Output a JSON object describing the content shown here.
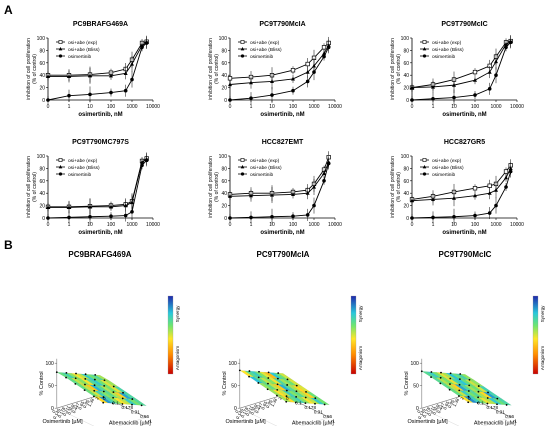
{
  "panel_a_label": "A",
  "panel_b_label": "B",
  "chart_data": [
    {
      "type": "line",
      "title": "PC9BRAFG469A",
      "xlabel": "osimertinib, nM",
      "ylabel": "inhibition of cell proliferation (% of control)",
      "x_ticks": [
        "0",
        "1",
        "10",
        "100",
        "1000",
        "10000"
      ],
      "y_ticks": [
        "0",
        "20",
        "40",
        "60",
        "80",
        "100"
      ],
      "x_scale": "log (with 0 at left)",
      "ylim": [
        0,
        100
      ],
      "legend": "top-left",
      "series": [
        {
          "name": "osi+abe (exp)",
          "x": [
            0,
            1,
            10,
            100,
            500,
            1000,
            3000,
            5000
          ],
          "y": [
            40,
            40,
            41,
            44,
            50,
            65,
            92,
            94
          ]
        },
        {
          "name": "osi+abe (Bliss)",
          "x": [
            0,
            1,
            10,
            100,
            500,
            1000,
            3000,
            5000
          ],
          "y": [
            38,
            38,
            39,
            39,
            43,
            58,
            88,
            93
          ]
        },
        {
          "name": "osimertinib",
          "x": [
            0,
            1,
            10,
            100,
            500,
            1000,
            3000,
            5000
          ],
          "y": [
            0,
            7,
            9,
            12,
            15,
            33,
            85,
            92
          ]
        }
      ]
    },
    {
      "type": "line",
      "title": "PC9T790McIA",
      "xlabel": "osimertinib, nM",
      "ylabel": "inhibition of cell proliferation (% of control)",
      "x_ticks": [
        "0",
        "1",
        "10",
        "100",
        "1000",
        "10000"
      ],
      "y_ticks": [
        "0",
        "20",
        "40",
        "60",
        "80",
        "100"
      ],
      "x_scale": "log (with 0 at left)",
      "ylim": [
        0,
        100
      ],
      "legend": "top-left",
      "series": [
        {
          "name": "osi+abe (exp)",
          "x": [
            0,
            1,
            10,
            100,
            500,
            1000,
            3000,
            5000
          ],
          "y": [
            35,
            37,
            40,
            48,
            58,
            68,
            85,
            92
          ]
        },
        {
          "name": "osi+abe (Bliss)",
          "x": [
            0,
            1,
            10,
            100,
            500,
            1000,
            3000,
            5000
          ],
          "y": [
            25,
            28,
            30,
            34,
            45,
            55,
            75,
            88
          ]
        },
        {
          "name": "osimertinib",
          "x": [
            0,
            1,
            10,
            100,
            500,
            1000,
            3000,
            5000
          ],
          "y": [
            0,
            3,
            8,
            15,
            30,
            45,
            70,
            85
          ]
        }
      ]
    },
    {
      "type": "line",
      "title": "PC9T790McIC",
      "xlabel": "osimertinib, nM",
      "ylabel": "inhibition of cell proliferation (% of control)",
      "x_ticks": [
        "0",
        "1",
        "10",
        "100",
        "1000",
        "10000"
      ],
      "y_ticks": [
        "0",
        "20",
        "40",
        "60",
        "80",
        "100"
      ],
      "x_scale": "log (with 0 at left)",
      "ylim": [
        0,
        100
      ],
      "legend": "top-left",
      "series": [
        {
          "name": "osi+abe (exp)",
          "x": [
            0,
            1,
            10,
            100,
            500,
            1000,
            3000,
            5000
          ],
          "y": [
            20,
            25,
            33,
            45,
            55,
            70,
            93,
            95
          ]
        },
        {
          "name": "osi+abe (Bliss)",
          "x": [
            0,
            1,
            10,
            100,
            500,
            1000,
            3000,
            5000
          ],
          "y": [
            20,
            21,
            24,
            32,
            45,
            62,
            90,
            94
          ]
        },
        {
          "name": "osimertinib",
          "x": [
            0,
            1,
            10,
            100,
            500,
            1000,
            3000,
            5000
          ],
          "y": [
            0,
            2,
            4,
            8,
            18,
            40,
            85,
            93
          ]
        }
      ]
    },
    {
      "type": "line",
      "title": "PC9T790MC797S",
      "xlabel": "osimertinib, nM",
      "ylabel": "inhibition of cell proliferation (% of control)",
      "x_ticks": [
        "0",
        "1",
        "10",
        "100",
        "1000",
        "10000"
      ],
      "y_ticks": [
        "0",
        "20",
        "40",
        "60",
        "80",
        "100"
      ],
      "x_scale": "log (with 0 at left)",
      "ylim": [
        0,
        100
      ],
      "legend": "top-left",
      "series": [
        {
          "name": "osi+abe (exp)",
          "x": [
            0,
            1,
            10,
            100,
            500,
            1000,
            3000,
            5000
          ],
          "y": [
            18,
            18,
            19,
            20,
            22,
            27,
            92,
            96
          ]
        },
        {
          "name": "osi+abe (Bliss)",
          "x": [
            0,
            1,
            10,
            100,
            500,
            1000,
            3000,
            5000
          ],
          "y": [
            17,
            17,
            18,
            18,
            20,
            25,
            90,
            95
          ]
        },
        {
          "name": "osimertinib",
          "x": [
            0,
            1,
            10,
            100,
            500,
            1000,
            3000,
            5000
          ],
          "y": [
            0,
            1,
            2,
            3,
            4,
            10,
            85,
            93
          ]
        }
      ]
    },
    {
      "type": "line",
      "title": "HCC827EMT",
      "xlabel": "osimertinib, nM",
      "ylabel": "inhibition of cell proliferation (% of control)",
      "x_ticks": [
        "0",
        "1",
        "10",
        "100",
        "1000",
        "10000"
      ],
      "y_ticks": [
        "0",
        "20",
        "40",
        "60",
        "80",
        "100"
      ],
      "x_scale": "log (with 0 at left)",
      "ylim": [
        0,
        100
      ],
      "legend": "top-left",
      "series": [
        {
          "name": "osi+abe (exp)",
          "x": [
            0,
            1,
            10,
            100,
            500,
            1000,
            3000,
            5000
          ],
          "y": [
            38,
            40,
            40,
            42,
            45,
            55,
            78,
            98
          ]
        },
        {
          "name": "osi+abe (Bliss)",
          "x": [
            0,
            1,
            10,
            100,
            500,
            1000,
            3000,
            5000
          ],
          "y": [
            35,
            36,
            37,
            38,
            40,
            50,
            72,
            90
          ]
        },
        {
          "name": "osimertinib",
          "x": [
            0,
            1,
            10,
            100,
            500,
            1000,
            3000,
            5000
          ],
          "y": [
            0,
            1,
            2,
            3,
            5,
            20,
            60,
            88
          ]
        }
      ]
    },
    {
      "type": "line",
      "title": "HCC827GR5",
      "xlabel": "osimertinib, nM",
      "ylabel": "inhibition of cell proliferation (% of control)",
      "x_ticks": [
        "0",
        "1",
        "10",
        "100",
        "1000",
        "10000"
      ],
      "y_ticks": [
        "0",
        "20",
        "40",
        "60",
        "80",
        "100"
      ],
      "x_scale": "log (with 0 at left)",
      "ylim": [
        0,
        100
      ],
      "legend": "top-left",
      "series": [
        {
          "name": "osi+abe (exp)",
          "x": [
            0,
            1,
            10,
            100,
            500,
            1000,
            3000,
            5000
          ],
          "y": [
            30,
            35,
            42,
            48,
            52,
            55,
            75,
            85
          ]
        },
        {
          "name": "osi+abe (Bliss)",
          "x": [
            0,
            1,
            10,
            100,
            500,
            1000,
            3000,
            5000
          ],
          "y": [
            28,
            30,
            32,
            36,
            40,
            45,
            65,
            80
          ]
        },
        {
          "name": "osimertinib",
          "x": [
            0,
            1,
            10,
            100,
            500,
            1000,
            3000,
            5000
          ],
          "y": [
            0,
            1,
            2,
            4,
            8,
            20,
            50,
            75
          ]
        }
      ]
    },
    {
      "type": "heatmap",
      "title": "PC9BRAFG469A",
      "xlabel": "Abemaciclib [µM]",
      "ylabel": "Osimertinib [µM]",
      "zlabel": "% Control",
      "x_ticks": [
        "0",
        "0.1",
        "0.178",
        "0.31",
        "0.56",
        "1"
      ],
      "y_ticks": [
        "0",
        "0.145",
        "0.178",
        "0.211",
        "0.308",
        "0.447",
        "0.65",
        "0.95",
        "1.38",
        "2"
      ],
      "z_ticks": [
        "0",
        "50",
        "100"
      ],
      "colorbar_labels": [
        "Synergy",
        "Antagonism"
      ],
      "surface": [
        [
          80,
          78,
          74,
          70,
          66,
          62
        ],
        [
          76,
          74,
          70,
          66,
          62,
          58
        ],
        [
          72,
          70,
          66,
          62,
          58,
          54
        ],
        [
          68,
          66,
          62,
          58,
          54,
          50
        ],
        [
          64,
          62,
          58,
          54,
          50,
          46
        ],
        [
          60,
          58,
          54,
          50,
          46,
          42
        ],
        [
          56,
          54,
          50,
          46,
          42,
          38
        ],
        [
          52,
          50,
          46,
          42,
          38,
          34
        ],
        [
          48,
          46,
          42,
          38,
          34,
          30
        ],
        [
          44,
          42,
          38,
          34,
          30,
          26
        ]
      ]
    },
    {
      "type": "heatmap",
      "title": "PC9T790McIA",
      "xlabel": "Abemaciclib [µM]",
      "ylabel": "Osimertinib [µM]",
      "zlabel": "% Control",
      "x_ticks": [
        "0",
        "0.1",
        "0.178",
        "0.31",
        "0.56",
        "1"
      ],
      "y_ticks": [
        "0",
        "0.145",
        "0.178",
        "0.211",
        "0.308",
        "0.447",
        "0.65",
        "0.95",
        "1.38",
        "2"
      ],
      "z_ticks": [
        "0",
        "50",
        "100"
      ],
      "colorbar_labels": [
        "Synergy",
        "Antagonism"
      ],
      "surface": [
        [
          84,
          80,
          76,
          72,
          68,
          64
        ],
        [
          80,
          76,
          72,
          68,
          64,
          60
        ],
        [
          76,
          72,
          68,
          64,
          60,
          56
        ],
        [
          72,
          68,
          64,
          60,
          56,
          52
        ],
        [
          68,
          64,
          60,
          56,
          52,
          48
        ],
        [
          64,
          60,
          56,
          52,
          48,
          44
        ],
        [
          60,
          56,
          52,
          48,
          44,
          40
        ],
        [
          56,
          52,
          48,
          44,
          40,
          36
        ],
        [
          52,
          48,
          44,
          40,
          36,
          32
        ],
        [
          48,
          44,
          40,
          36,
          32,
          28
        ]
      ]
    },
    {
      "type": "heatmap",
      "title": "PC9T790McIC",
      "xlabel": "Abemaciclib [µM]",
      "ylabel": "Osimertinib [µM]",
      "zlabel": "% Control",
      "x_ticks": [
        "0",
        "0.1",
        "0.178",
        "0.31",
        "0.56",
        "1"
      ],
      "y_ticks": [
        "0",
        "0.145",
        "0.178",
        "0.211",
        "0.308",
        "0.447",
        "0.65",
        "0.95",
        "1.38",
        "2"
      ],
      "z_ticks": [
        "0",
        "50",
        "100"
      ],
      "colorbar_labels": [
        "Synergy",
        "Antagonism"
      ],
      "surface": [
        [
          82,
          79,
          75,
          71,
          67,
          63
        ],
        [
          78,
          75,
          71,
          67,
          63,
          59
        ],
        [
          74,
          71,
          67,
          63,
          59,
          55
        ],
        [
          70,
          67,
          63,
          59,
          55,
          51
        ],
        [
          66,
          63,
          59,
          55,
          51,
          47
        ],
        [
          62,
          59,
          55,
          51,
          47,
          43
        ],
        [
          58,
          55,
          51,
          47,
          43,
          39
        ],
        [
          54,
          51,
          47,
          43,
          39,
          35
        ],
        [
          50,
          47,
          43,
          39,
          35,
          31
        ],
        [
          46,
          43,
          39,
          35,
          31,
          27
        ]
      ]
    }
  ]
}
